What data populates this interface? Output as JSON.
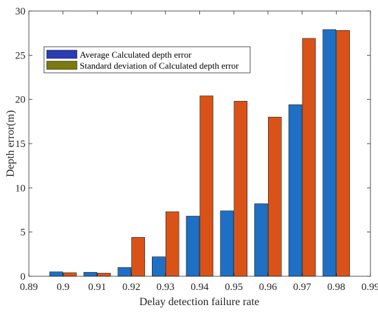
{
  "chart_data": {
    "type": "bar",
    "title": "",
    "xlabel": "Delay detection failure rate",
    "ylabel": "Depth error(m)",
    "x_ticks": [
      "0.89",
      "0.9",
      "0.91",
      "0.92",
      "0.93",
      "0.94",
      "0.95",
      "0.96",
      "0.97",
      "0.98",
      "0.99"
    ],
    "y_ticks": [
      "0",
      "5",
      "10",
      "15",
      "20",
      "25",
      "30"
    ],
    "xlim": [
      0.89,
      0.99
    ],
    "ylim": [
      0,
      30
    ],
    "x": [
      0.9,
      0.91,
      0.92,
      0.93,
      0.94,
      0.95,
      0.96,
      0.97,
      0.98
    ],
    "series": [
      {
        "name": "Average Calculated depth error",
        "color": "#1f6fc5",
        "values": [
          0.5,
          0.45,
          1.0,
          2.2,
          6.8,
          7.4,
          8.2,
          19.4,
          27.9
        ]
      },
      {
        "name": "Standard deviation of Calculated depth error",
        "color": "#d95319",
        "values": [
          0.4,
          0.35,
          4.4,
          7.3,
          20.4,
          19.8,
          18.0,
          26.9,
          27.8
        ]
      }
    ],
    "legend_colors": [
      "#2b3bb5",
      "#7a7a10"
    ],
    "grid": false,
    "legend_position": "top-left"
  }
}
